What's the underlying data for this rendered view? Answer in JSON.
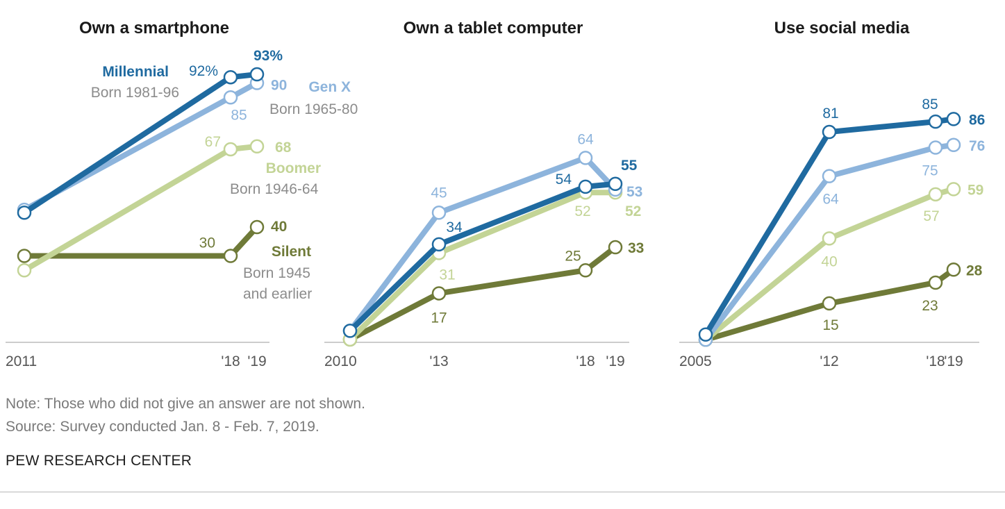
{
  "colors": {
    "millennial": "#1f6aa0",
    "genx": "#8db4dc",
    "boomer": "#c3d496",
    "silent": "#6f7a38",
    "axis": "#bbbbbb",
    "tick": "#555555",
    "born": "#8c8c8c"
  },
  "chart_data": [
    {
      "type": "line",
      "title": "Own a smartphone",
      "x_years": [
        2011,
        2018,
        2019
      ],
      "x_tick_labels": [
        {
          "year": 2011,
          "label": "2011",
          "anchor": "start"
        },
        {
          "year": 2018,
          "label": "'18",
          "anchor": "middle"
        },
        {
          "year": 2019,
          "label": "'19",
          "anchor": "middle"
        }
      ],
      "ylim": [
        0,
        100
      ],
      "series": [
        {
          "key": "silent",
          "name": "Silent",
          "values": [
            30,
            30,
            40
          ],
          "point_labels": [
            "",
            "30",
            "40"
          ]
        },
        {
          "key": "boomer",
          "name": "Boomer",
          "values": [
            25,
            67,
            68
          ],
          "point_labels": [
            "",
            "67",
            "68"
          ]
        },
        {
          "key": "genx",
          "name": "Gen X",
          "values": [
            46,
            85,
            90
          ],
          "point_labels": [
            "",
            "85",
            "90"
          ]
        },
        {
          "key": "millennial",
          "name": "Millennial",
          "values": [
            45,
            92,
            93
          ],
          "point_labels": [
            "",
            "92%",
            "93%"
          ]
        }
      ],
      "legend": [
        {
          "key": "millennial",
          "name": "Millennial",
          "born": "Born 1981-96"
        },
        {
          "key": "genx",
          "name": "Gen X",
          "born": "Born 1965-80"
        },
        {
          "key": "boomer",
          "name": "Boomer",
          "born": "Born 1946-64"
        },
        {
          "key": "silent",
          "name": "Silent",
          "born_lines": [
            "Born 1945",
            "and earlier"
          ]
        }
      ]
    },
    {
      "type": "line",
      "title": "Own a tablet computer",
      "x_years": [
        2010,
        2013,
        2018,
        2019
      ],
      "x_tick_labels": [
        {
          "year": 2010,
          "label": "2010",
          "anchor": "start"
        },
        {
          "year": 2013,
          "label": "'13",
          "anchor": "middle"
        },
        {
          "year": 2018,
          "label": "'18",
          "anchor": "middle"
        },
        {
          "year": 2019,
          "label": "'19",
          "anchor": "middle"
        }
      ],
      "ylim": [
        0,
        100
      ],
      "series": [
        {
          "key": "silent",
          "name": "Silent",
          "values": [
            1,
            17,
            25,
            33
          ],
          "point_labels": [
            "",
            "17",
            "25",
            "33"
          ]
        },
        {
          "key": "boomer",
          "name": "Boomer",
          "values": [
            1,
            31,
            52,
            52
          ],
          "point_labels": [
            "",
            "31",
            "52",
            "52"
          ]
        },
        {
          "key": "genx",
          "name": "Gen X",
          "values": [
            4,
            45,
            64,
            53
          ],
          "point_labels": [
            "",
            "45",
            "64",
            "53"
          ]
        },
        {
          "key": "millennial",
          "name": "Millennial",
          "values": [
            4,
            34,
            54,
            55
          ],
          "point_labels": [
            "",
            "34",
            "54",
            "55"
          ]
        }
      ]
    },
    {
      "type": "line",
      "title": "Use social media",
      "x_years": [
        2005,
        2012,
        2018,
        2019
      ],
      "x_tick_labels": [
        {
          "year": 2005,
          "label": "2005",
          "anchor": "start"
        },
        {
          "year": 2012,
          "label": "'12",
          "anchor": "middle"
        },
        {
          "year": 2018,
          "label": "'18",
          "anchor": "middle"
        },
        {
          "year": 2019,
          "label": "'19",
          "anchor": "middle"
        }
      ],
      "ylim": [
        0,
        100
      ],
      "series": [
        {
          "key": "silent",
          "name": "Silent",
          "values": [
            1,
            15,
            23,
            28
          ],
          "point_labels": [
            "",
            "15",
            "23",
            "28"
          ]
        },
        {
          "key": "boomer",
          "name": "Boomer",
          "values": [
            1,
            40,
            57,
            59
          ],
          "point_labels": [
            "",
            "40",
            "57",
            "59"
          ]
        },
        {
          "key": "genx",
          "name": "Gen X",
          "values": [
            1,
            64,
            75,
            76
          ],
          "point_labels": [
            "",
            "64",
            "75",
            "76"
          ]
        },
        {
          "key": "millennial",
          "name": "Millennial",
          "values": [
            3,
            81,
            85,
            86
          ],
          "point_labels": [
            "",
            "81",
            "85",
            "86"
          ]
        }
      ]
    }
  ],
  "footer": {
    "note": "Note: Those who did not give an answer are not shown.",
    "source": "Source: Survey conducted Jan. 8 - Feb. 7, 2019.",
    "org": "PEW RESEARCH CENTER"
  }
}
